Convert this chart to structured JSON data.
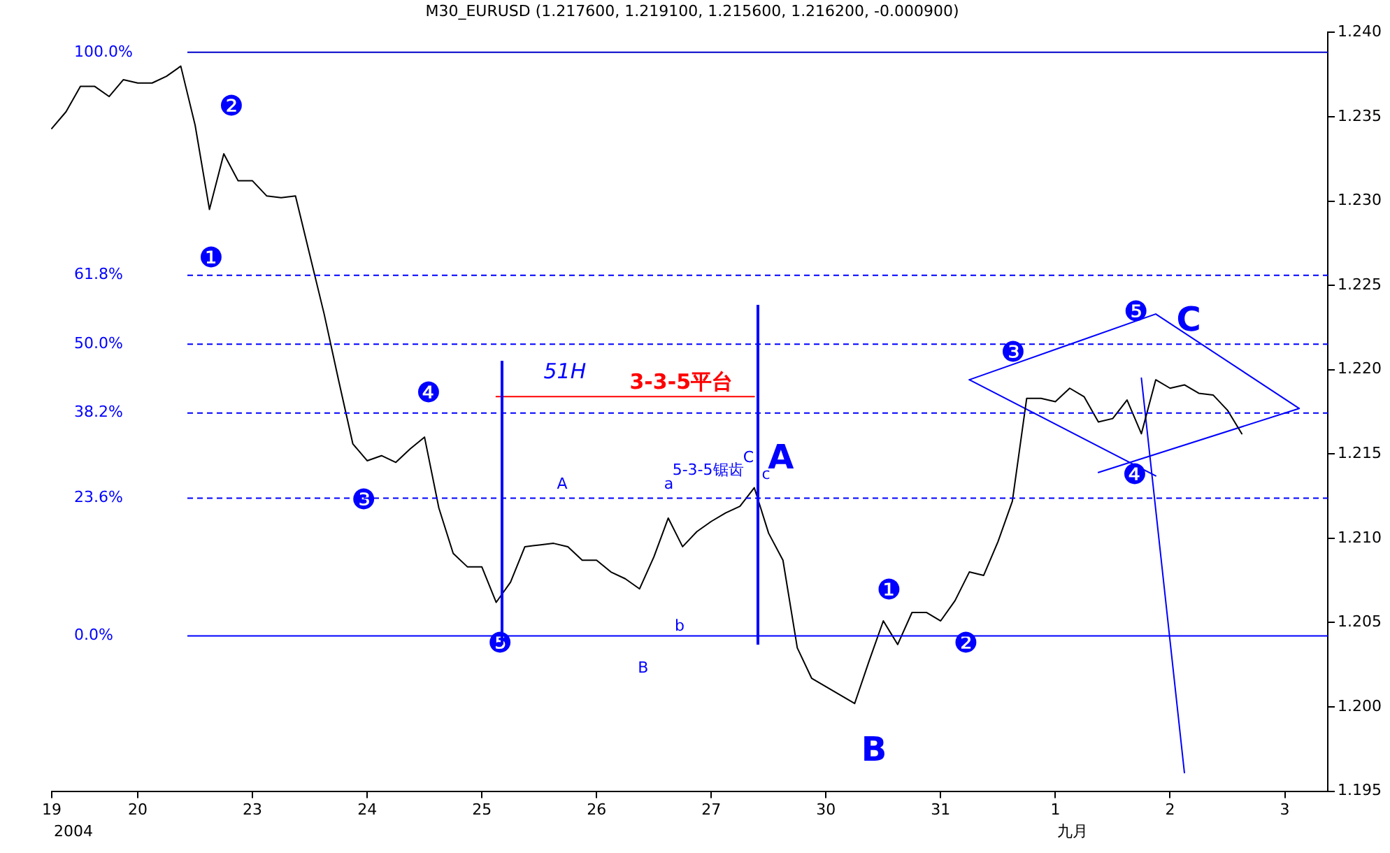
{
  "chart_data": {
    "type": "line",
    "title": "M30_EURUSD (1.217600, 1.219100, 1.215600, 1.216200, -0.000900)",
    "categories": [
      "19",
      null,
      null,
      null,
      null,
      null,
      "20",
      null,
      null,
      null,
      null,
      null,
      null,
      null,
      "23",
      null,
      null,
      null,
      null,
      null,
      null,
      null,
      "24",
      null,
      null,
      null,
      null,
      null,
      null,
      null,
      "25",
      null,
      null,
      null,
      null,
      null,
      null,
      null,
      "26",
      null,
      null,
      null,
      null,
      null,
      null,
      null,
      "27",
      null,
      null,
      null,
      null,
      null,
      null,
      null,
      "30",
      null,
      null,
      null,
      null,
      null,
      null,
      null,
      "31",
      null,
      null,
      null,
      null,
      null,
      null,
      null,
      "1",
      null,
      null,
      null,
      null,
      null,
      null,
      null,
      "2",
      null,
      null,
      null,
      null,
      null,
      null,
      null,
      "3",
      null,
      null,
      null
    ],
    "ylim": [
      1.195,
      1.24
    ],
    "yticks": [
      {
        "value": 1.195,
        "label": "1.195"
      },
      {
        "value": 1.2,
        "label": "1.200"
      },
      1.205,
      {
        "value": 1.21,
        "label": "1.210"
      },
      1.215,
      {
        "value": 1.22,
        "label": "1.220"
      },
      1.225,
      {
        "value": 1.23,
        "label": "1.230"
      },
      1.235,
      {
        "value": 1.24,
        "label": "1.240"
      }
    ],
    "y2lim": [
      -26.6,
      103.4
    ],
    "y2ticks": [
      {
        "value": 100,
        "label": "100.0%"
      },
      {
        "value": 61.8,
        "label": "61.8%"
      },
      {
        "value": 50,
        "label": "50.0%"
      },
      {
        "value": 38.2,
        "label": "38.2%"
      },
      {
        "value": 23.6,
        "label": "23.6%"
      },
      {
        "value": 0,
        "label": "0.0%"
      }
    ],
    "grid": false,
    "legend": false,
    "marker": "none",
    "line_style": "solid",
    "series": [
      {
        "color": "#000000",
        "values": [
          1.2343,
          1.2353,
          1.2368,
          1.2368,
          1.2362,
          1.2372,
          1.237,
          1.237,
          1.2374,
          1.238,
          1.2345,
          1.2295,
          1.2328,
          1.2312,
          1.2312,
          1.2303,
          1.2302,
          1.2303,
          1.2268,
          1.2233,
          1.2194,
          1.2156,
          1.2146,
          1.2149,
          1.2145,
          1.2153,
          1.216,
          1.2118,
          1.2091,
          1.2083,
          1.2083,
          1.2062,
          1.2074,
          1.2095,
          1.2096,
          1.2097,
          1.2095,
          1.2087,
          1.2087,
          1.208,
          1.2076,
          1.207,
          1.2089,
          1.2112,
          1.2095,
          1.2104,
          1.211,
          1.2115,
          1.2119,
          1.213,
          1.2103,
          1.2087,
          1.2035,
          1.2017,
          1.2012,
          1.2007,
          1.2002,
          1.2027,
          1.2051,
          1.2037,
          1.2056,
          1.2056,
          1.2051,
          1.2063,
          1.208,
          1.2078,
          1.2098,
          1.2122,
          1.2183,
          1.2183,
          1.2181,
          1.2189,
          1.2184,
          1.2169,
          1.2171,
          1.2182,
          1.2162,
          1.2194,
          1.2189,
          1.2191,
          1.2186,
          1.2185,
          1.2176,
          1.2162,
          null,
          null,
          null,
          null,
          null,
          null
        ]
      },
      {
        "name": "3-3-5平台",
        "color": "#ff0000",
        "values": [
          null,
          null,
          null,
          null,
          null,
          null,
          null,
          null,
          null,
          null,
          null,
          null,
          null,
          null,
          null,
          null,
          null,
          null,
          null,
          null,
          null,
          null,
          null,
          null,
          null,
          null,
          null,
          null,
          null,
          null,
          null,
          1.2184,
          null,
          null,
          null,
          null,
          null,
          null,
          null,
          null,
          null,
          null,
          null,
          null,
          null,
          null,
          null,
          null,
          null,
          1.2184,
          null,
          null,
          null,
          null,
          null,
          null,
          null,
          null,
          null,
          null,
          null,
          null,
          null,
          null,
          null,
          null,
          null,
          null,
          null,
          null,
          null,
          null,
          null,
          null,
          null,
          null,
          null,
          null,
          null,
          null,
          null,
          null,
          null,
          null,
          null,
          null,
          null,
          null,
          null,
          null
        ]
      },
      {
        "color": "#0000ff",
        "values": [
          null,
          null,
          null,
          null,
          null,
          null,
          null,
          null,
          null,
          null,
          null,
          null,
          null,
          null,
          null,
          null,
          null,
          null,
          null,
          null,
          null,
          null,
          null,
          null,
          null,
          null,
          null,
          null,
          null,
          null,
          null,
          null,
          null,
          null,
          null,
          null,
          null,
          null,
          null,
          null,
          null,
          null,
          null,
          null,
          null,
          null,
          null,
          null,
          null,
          null,
          null,
          null,
          null,
          null,
          null,
          null,
          null,
          null,
          null,
          null,
          null,
          null,
          null,
          null,
          1.2194,
          null,
          null,
          null,
          null,
          null,
          null,
          null,
          null,
          null,
          null,
          null,
          null,
          1.2233,
          null,
          null,
          null,
          null,
          null,
          null,
          null,
          null,
          null,
          1.2177,
          null,
          null
        ]
      },
      {
        "color": "#0000ff",
        "values": [
          null,
          null,
          null,
          null,
          null,
          null,
          null,
          null,
          null,
          null,
          null,
          null,
          null,
          null,
          null,
          null,
          null,
          null,
          null,
          null,
          null,
          null,
          null,
          null,
          null,
          null,
          null,
          null,
          null,
          null,
          null,
          null,
          null,
          null,
          null,
          null,
          null,
          null,
          null,
          null,
          null,
          null,
          null,
          null,
          null,
          null,
          null,
          null,
          null,
          null,
          null,
          null,
          null,
          null,
          null,
          null,
          null,
          null,
          null,
          null,
          null,
          null,
          null,
          null,
          null,
          null,
          null,
          null,
          null,
          null,
          null,
          null,
          null,
          1.2139,
          null,
          null,
          null,
          null,
          null,
          null,
          null,
          null,
          null,
          null,
          null,
          null,
          null,
          1.2177,
          null,
          null
        ]
      },
      {
        "color": "#0000ff",
        "values": [
          null,
          null,
          null,
          null,
          null,
          null,
          null,
          null,
          null,
          null,
          null,
          null,
          null,
          null,
          null,
          null,
          null,
          null,
          null,
          null,
          null,
          null,
          null,
          null,
          null,
          null,
          null,
          null,
          null,
          null,
          null,
          null,
          null,
          null,
          null,
          null,
          null,
          null,
          null,
          null,
          null,
          null,
          null,
          null,
          null,
          null,
          null,
          null,
          null,
          null,
          null,
          null,
          null,
          null,
          null,
          null,
          null,
          null,
          null,
          null,
          null,
          null,
          null,
          null,
          1.2194,
          null,
          null,
          null,
          null,
          null,
          null,
          null,
          null,
          null,
          null,
          null,
          null,
          1.2137,
          null,
          null,
          null,
          null,
          null,
          null,
          null,
          null,
          null,
          null,
          null,
          null
        ]
      },
      {
        "color": "#0000ff",
        "values": [
          null,
          null,
          null,
          null,
          null,
          null,
          null,
          null,
          null,
          null,
          null,
          null,
          null,
          null,
          null,
          null,
          null,
          null,
          null,
          null,
          null,
          null,
          null,
          null,
          null,
          null,
          null,
          null,
          null,
          null,
          null,
          null,
          null,
          null,
          null,
          null,
          null,
          null,
          null,
          null,
          null,
          null,
          null,
          null,
          null,
          null,
          null,
          null,
          null,
          null,
          null,
          null,
          null,
          null,
          null,
          null,
          null,
          null,
          null,
          null,
          null,
          null,
          null,
          null,
          null,
          null,
          null,
          null,
          null,
          null,
          null,
          null,
          null,
          null,
          null,
          null,
          1.2195,
          null,
          null,
          1.1961,
          null,
          null,
          null,
          null,
          null,
          null,
          null,
          null,
          null,
          null
        ]
      }
    ],
    "ref_lines": [
      {
        "axis": "y2",
        "value": 100,
        "color": "#0000cc",
        "line_style": "solid"
      },
      {
        "axis": "y2",
        "value": 61.8,
        "color": "#0000ff",
        "line_style": "dashed"
      },
      {
        "axis": "y2",
        "value": 50,
        "color": "#0000ff",
        "line_style": "dashed"
      },
      {
        "axis": "y2",
        "value": 38.2,
        "color": "#0000ff",
        "line_style": "dashed"
      },
      {
        "axis": "y2",
        "value": 23.6,
        "color": "#0000ff",
        "line_style": "dashed"
      },
      {
        "axis": "y2",
        "value": 0,
        "color": "#0000ff",
        "line_style": "solid"
      }
    ],
    "annotations": [
      "❶",
      "❷",
      "❸",
      "❹",
      "❺",
      "51H",
      "A",
      "B",
      "a",
      "b",
      "5-3-5锯齿",
      "C",
      "c",
      "A",
      "B",
      "❶",
      "❷",
      "❸",
      "❹",
      "❺",
      "C",
      "2004",
      "九月"
    ]
  }
}
